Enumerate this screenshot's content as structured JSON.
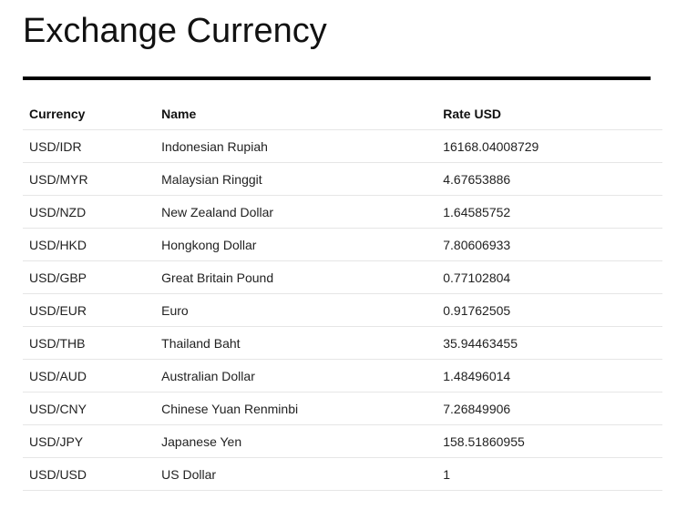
{
  "page": {
    "title": "Exchange Currency"
  },
  "table": {
    "headers": {
      "currency": "Currency",
      "name": "Name",
      "rate": "Rate USD"
    },
    "rows": [
      {
        "currency": "USD/IDR",
        "name": "Indonesian  Rupiah",
        "rate": "16168.04008729"
      },
      {
        "currency": "USD/MYR",
        "name": "Malaysian  Ringgit",
        "rate": "4.67653886"
      },
      {
        "currency": "USD/NZD",
        "name": "New  Zealand  Dollar",
        "rate": "1.64585752"
      },
      {
        "currency": "USD/HKD",
        "name": "Hongkong  Dollar",
        "rate": "7.80606933"
      },
      {
        "currency": "USD/GBP",
        "name": "Great  Britain  Pound",
        "rate": "0.77102804"
      },
      {
        "currency": "USD/EUR",
        "name": "Euro",
        "rate": "0.91762505"
      },
      {
        "currency": "USD/THB",
        "name": "Thailand  Baht",
        "rate": "35.94463455"
      },
      {
        "currency": "USD/AUD",
        "name": "Australian  Dollar",
        "rate": "1.48496014"
      },
      {
        "currency": "USD/CNY",
        "name": "Chinese Yuan Renminbi",
        "rate": "7.26849906"
      },
      {
        "currency": "USD/JPY",
        "name": "Japanese Yen",
        "rate": "158.51860955"
      },
      {
        "currency": "USD/USD",
        "name": "US Dollar",
        "rate": "1"
      }
    ]
  }
}
